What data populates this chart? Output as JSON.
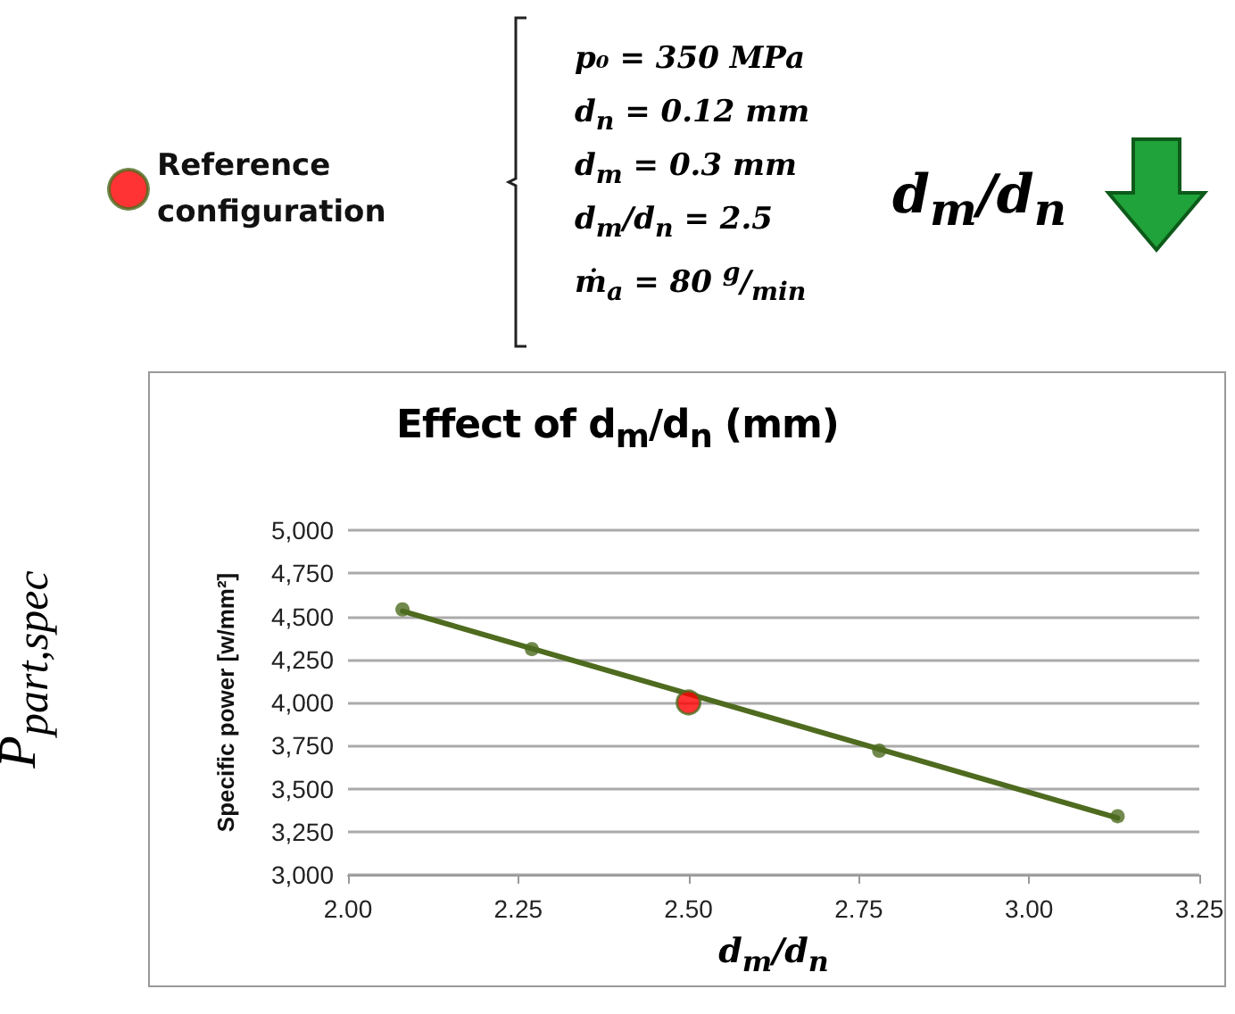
{
  "chart_data": {
    "type": "scatter",
    "title": "Effect of  d$_{m}$/d$_{n}$ (mm)",
    "xlabel": "d$_{m}$/d$_{n}$",
    "ylabel": "Specific power [w/mm²]",
    "annotations": [
      "P$_{part,spec}$",
      "p₀ = 350 MPa",
      "d$_{n}$ = 0.12 mm",
      "d$_{m}$ = 0.3 mm",
      "d$_{m}$/d$_{n}$ = 2.5",
      "ṁ$_{a}$ = 80 $^{g}$/$_{min}$",
      "d$_{m}$/d$_{n}$"
    ],
    "series": [
      {
        "type": "line",
        "color": "#4e6b1f",
        "x": [
          2.08,
          3.13
        ],
        "values": [
          4530,
          3330
        ],
        "marker": "none"
      },
      {
        "type": "scatter",
        "color": "#4e6b1f",
        "x": [
          2.08,
          2.27,
          2.78,
          3.13
        ],
        "values": [
          4540,
          4310,
          3720,
          3340
        ]
      },
      {
        "type": "scatter",
        "name": "Reference configuration",
        "color": "#ff0000",
        "x": [
          2.5
        ],
        "values": [
          4000
        ]
      }
    ],
    "xlim": [
      2,
      3.25
    ],
    "xticks": [
      {
        "value": 2,
        "label": "2.00"
      },
      {
        "value": 2.25,
        "label": "2.25"
      },
      {
        "value": 2.5,
        "label": "2.50"
      },
      {
        "value": 2.75,
        "label": "2.75"
      },
      {
        "value": 3,
        "label": "3.00"
      },
      {
        "value": 3.25,
        "label": "3.25"
      }
    ],
    "ylim": [
      3000,
      5000
    ],
    "yticks": [
      {
        "value": 3000,
        "label": "3,000"
      },
      {
        "value": 3250,
        "label": "3,250"
      },
      {
        "value": 3500,
        "label": "3,500"
      },
      {
        "value": 3750,
        "label": "3,750"
      },
      {
        "value": 4000,
        "label": "4,000"
      },
      {
        "value": 4250,
        "label": "4,250"
      },
      {
        "value": 4500,
        "label": "4,500"
      },
      {
        "value": 4750,
        "label": "4,750"
      },
      {
        "value": 5000,
        "label": "5,000"
      }
    ],
    "grid": "y",
    "legend": "top left",
    "marker": "circle"
  }
}
